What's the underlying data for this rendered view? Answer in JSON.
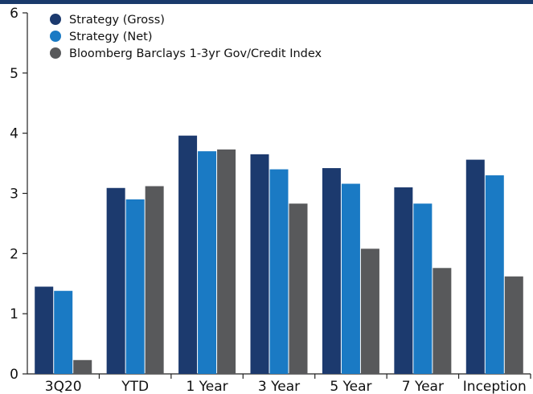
{
  "chart_data": {
    "type": "bar",
    "categories": [
      "3Q20",
      "YTD",
      "1 Year",
      "3 Year",
      "5 Year",
      "7 Year",
      "Inception"
    ],
    "series": [
      {
        "name": "Strategy (Gross)",
        "color": "#1c3a6e",
        "values": [
          1.45,
          3.09,
          3.96,
          3.65,
          3.42,
          3.1,
          3.56
        ]
      },
      {
        "name": "Strategy (Net)",
        "color": "#1a7ac4",
        "values": [
          1.38,
          2.9,
          3.7,
          3.4,
          3.16,
          2.83,
          3.3
        ]
      },
      {
        "name": "Bloomberg Barclays 1-3yr Gov/Credit Index",
        "color": "#58595b",
        "values": [
          0.23,
          3.12,
          3.73,
          2.83,
          2.08,
          1.76,
          1.62
        ]
      }
    ],
    "yticks": [
      "0",
      "1",
      "2",
      "3",
      "4",
      "5",
      "6"
    ],
    "ylim": [
      0,
      6
    ],
    "legend_position": "top-left",
    "grid": false
  }
}
